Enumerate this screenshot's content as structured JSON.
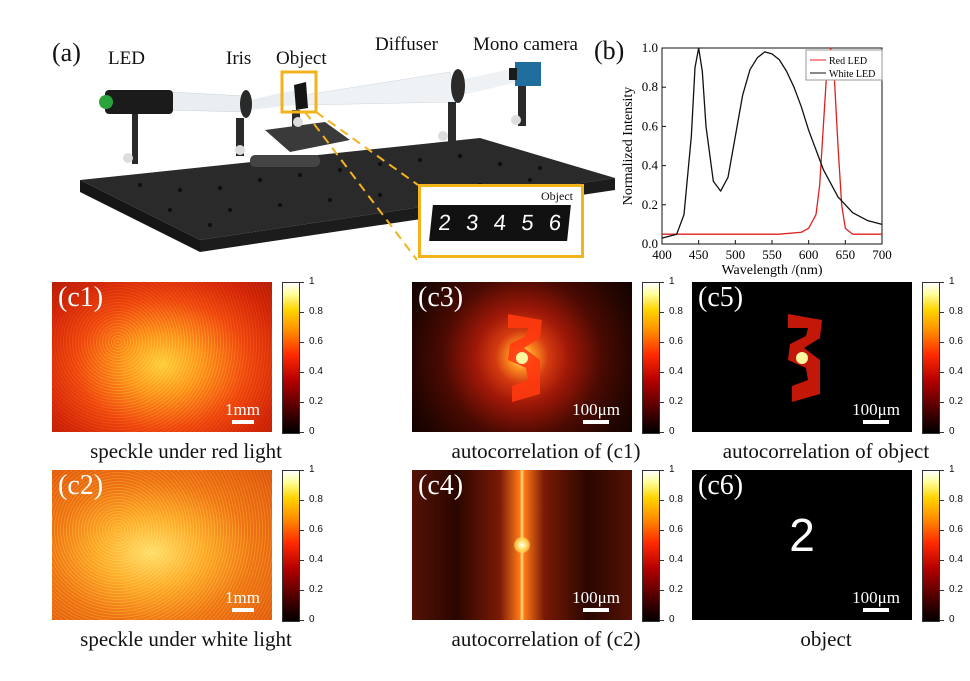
{
  "panel_a": {
    "tag": "(a)",
    "labels": {
      "led": "LED",
      "iris": "Iris",
      "object": "Object",
      "diffuser": "Diffuser",
      "camera": "Mono camera",
      "object_inset": "Object"
    },
    "digits": [
      "2",
      "3",
      "4",
      "5",
      "6"
    ]
  },
  "panel_b": {
    "tag": "(b)",
    "chart_data": {
      "type": "line",
      "xlabel": "Wavelength /(nm)",
      "ylabel": "Normalized Intensity",
      "xlim": [
        400,
        700
      ],
      "ylim": [
        0,
        1.0
      ],
      "xticks": [
        "400",
        "450",
        "500",
        "550",
        "600",
        "650",
        "700"
      ],
      "yticks": [
        "0.0",
        "0.2",
        "0.4",
        "0.6",
        "0.8",
        "1.0"
      ],
      "legend_position": "top-right",
      "series": [
        {
          "name": "Red LED",
          "color": "#e02020",
          "x": [
            400,
            560,
            590,
            600,
            610,
            615,
            620,
            625,
            630,
            635,
            640,
            645,
            650,
            660,
            680,
            700
          ],
          "y": [
            0.05,
            0.05,
            0.06,
            0.08,
            0.15,
            0.3,
            0.6,
            0.9,
            1.0,
            0.85,
            0.5,
            0.2,
            0.08,
            0.05,
            0.05,
            0.05
          ]
        },
        {
          "name": "White LED",
          "color": "#111111",
          "x": [
            400,
            420,
            430,
            440,
            445,
            450,
            455,
            460,
            470,
            480,
            490,
            500,
            510,
            520,
            530,
            540,
            550,
            560,
            570,
            580,
            590,
            600,
            620,
            640,
            660,
            680,
            700
          ],
          "y": [
            0.03,
            0.05,
            0.15,
            0.55,
            0.9,
            1.0,
            0.88,
            0.6,
            0.32,
            0.27,
            0.34,
            0.55,
            0.76,
            0.89,
            0.95,
            0.98,
            0.97,
            0.94,
            0.88,
            0.8,
            0.7,
            0.58,
            0.38,
            0.24,
            0.16,
            0.12,
            0.1
          ]
        }
      ]
    }
  },
  "panels_c": [
    {
      "tag": "(c1)",
      "caption": "speckle under red light",
      "scale": "1mm",
      "kind": "speckle-red"
    },
    {
      "tag": "(c2)",
      "caption": "speckle under white light",
      "scale": "1mm",
      "kind": "speckle-white"
    },
    {
      "tag": "(c3)",
      "caption": "autocorrelation of (c1)",
      "scale": "100μm",
      "kind": "autocorr"
    },
    {
      "tag": "(c4)",
      "caption": "autocorrelation of (c2)",
      "scale": "100μm",
      "kind": "autocorr-line"
    },
    {
      "tag": "(c5)",
      "caption": "autocorrelation of object",
      "scale": "100μm",
      "kind": "autocorr-obj"
    },
    {
      "tag": "(c6)",
      "caption": "object",
      "scale": "100μm",
      "kind": "object",
      "digit": "2"
    }
  ],
  "colorbar_ticks": [
    "1",
    "0.8",
    "0.6",
    "0.4",
    "0.2",
    "0"
  ]
}
